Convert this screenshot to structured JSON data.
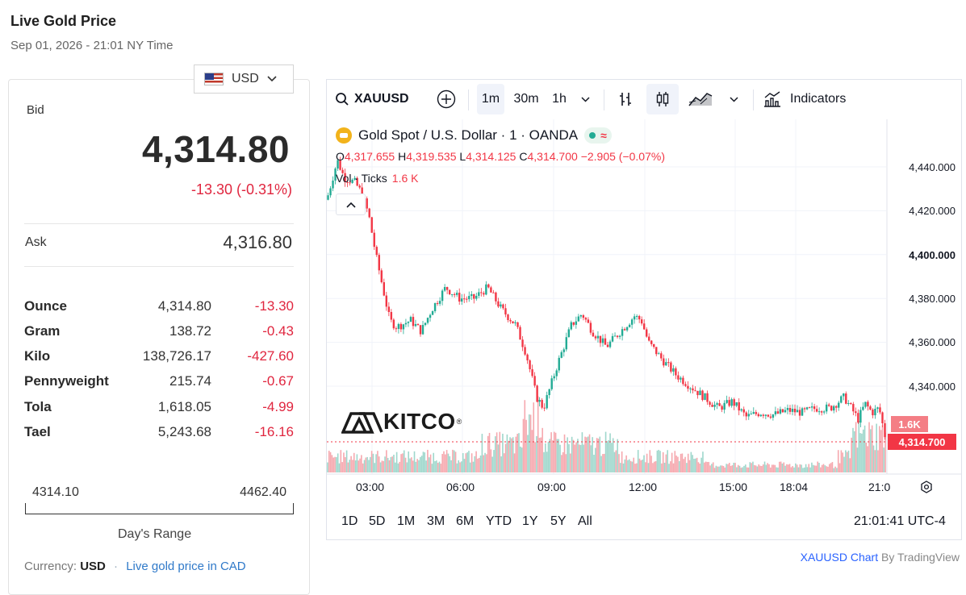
{
  "header": {
    "title": "Live Gold Price",
    "subtitle": "Sep 01, 2026 - 21:01 NY Time"
  },
  "currency_select": {
    "value": "USD",
    "flag_icon": "us-flag-icon",
    "chevron_icon": "chevron-down-icon"
  },
  "bid": {
    "label": "Bid",
    "value": "4,314.80",
    "change": "-13.30 (-0.31%)"
  },
  "ask": {
    "label": "Ask",
    "value": "4,316.80"
  },
  "units": [
    {
      "name": "Ounce",
      "value": "4,314.80",
      "change": "-13.30"
    },
    {
      "name": "Gram",
      "value": "138.72",
      "change": "-0.43"
    },
    {
      "name": "Kilo",
      "value": "138,726.17",
      "change": "-427.60"
    },
    {
      "name": "Pennyweight",
      "value": "215.74",
      "change": "-0.67"
    },
    {
      "name": "Tola",
      "value": "1,618.05",
      "change": "-4.99"
    },
    {
      "name": "Tael",
      "value": "5,243.68",
      "change": "-16.16"
    }
  ],
  "days_range": {
    "low": "4314.10",
    "high": "4462.40",
    "label": "Day's Range"
  },
  "footer": {
    "currency_label": "Currency:",
    "currency_value": "USD",
    "link": "Live gold price in CAD"
  },
  "toolbar": {
    "symbol": "XAUUSD",
    "intervals": [
      "1m",
      "30m",
      "1h"
    ],
    "active_interval": "1m",
    "indicators_label": "Indicators"
  },
  "chart_header": {
    "name": "Gold Spot / U.S. Dollar · 1 · OANDA",
    "o_label": "O",
    "o_value": "4,317.655",
    "h_label": "H",
    "h_value": "4,319.535",
    "l_label": "L",
    "l_value": "4,314.125",
    "c_label": "C",
    "c_value": "4,314.700",
    "change": "−2.905 (−0.07%)",
    "vol_label": "Vol · Ticks",
    "vol_value": "1.6 K"
  },
  "logo": {
    "text": "KITCO",
    "mark": "®"
  },
  "chart_data": {
    "type": "candlestick",
    "symbol": "XAUUSD",
    "y_ticks": [
      "4,440.000",
      "4,420.000",
      "4,400.000",
      "4,380.000",
      "4,360.000",
      "4,340.000"
    ],
    "ylim": [
      4315,
      4445
    ],
    "x_ticks": [
      "03:00",
      "06:00",
      "09:00",
      "12:00",
      "15:00",
      "18:04",
      "21:0"
    ],
    "last_price_label": "4,314.700",
    "last_volume_label": "1.6K",
    "price_path": [
      [
        0.0,
        4425
      ],
      [
        1.5,
        4443
      ],
      [
        2.5,
        4435
      ],
      [
        4.0,
        4433
      ],
      [
        5.0,
        4428
      ],
      [
        6.0,
        4418
      ],
      [
        7.0,
        4400
      ],
      [
        8.0,
        4385
      ],
      [
        9.0,
        4370
      ],
      [
        10.0,
        4367
      ],
      [
        12.0,
        4370
      ],
      [
        13.5,
        4365
      ],
      [
        15.0,
        4375
      ],
      [
        17.0,
        4385
      ],
      [
        19.0,
        4380
      ],
      [
        21.0,
        4380
      ],
      [
        23.0,
        4385
      ],
      [
        25.0,
        4375
      ],
      [
        27.0,
        4368
      ],
      [
        28.5,
        4355
      ],
      [
        30.0,
        4335
      ],
      [
        31.0,
        4330
      ],
      [
        33.0,
        4350
      ],
      [
        35.0,
        4368
      ],
      [
        36.5,
        4373
      ],
      [
        38.0,
        4365
      ],
      [
        40.0,
        4358
      ],
      [
        42.0,
        4365
      ],
      [
        44.0,
        4372
      ],
      [
        45.0,
        4370
      ],
      [
        46.0,
        4360
      ],
      [
        48.0,
        4352
      ],
      [
        50.0,
        4345
      ],
      [
        52.0,
        4340
      ],
      [
        54.0,
        4335
      ],
      [
        56.0,
        4330
      ],
      [
        58.0,
        4333
      ],
      [
        60.0,
        4326
      ],
      [
        62.0,
        4328
      ],
      [
        64.0,
        4327
      ],
      [
        66.0,
        4329
      ],
      [
        68.0,
        4328
      ],
      [
        70.0,
        4330
      ],
      [
        72.0,
        4330
      ],
      [
        74.0,
        4335
      ],
      [
        75.0,
        4330
      ],
      [
        76.0,
        4325
      ],
      [
        77.0,
        4332
      ],
      [
        78.0,
        4328
      ],
      [
        79.0,
        4330
      ],
      [
        80.0,
        4315
      ]
    ]
  },
  "time_ranges": [
    "1D",
    "5D",
    "1M",
    "3M",
    "6M",
    "YTD",
    "1Y",
    "5Y",
    "All"
  ],
  "clock": "21:01:41 UTC-4",
  "attribution": {
    "link": "XAUUSD Chart",
    "suffix": " By TradingView"
  }
}
